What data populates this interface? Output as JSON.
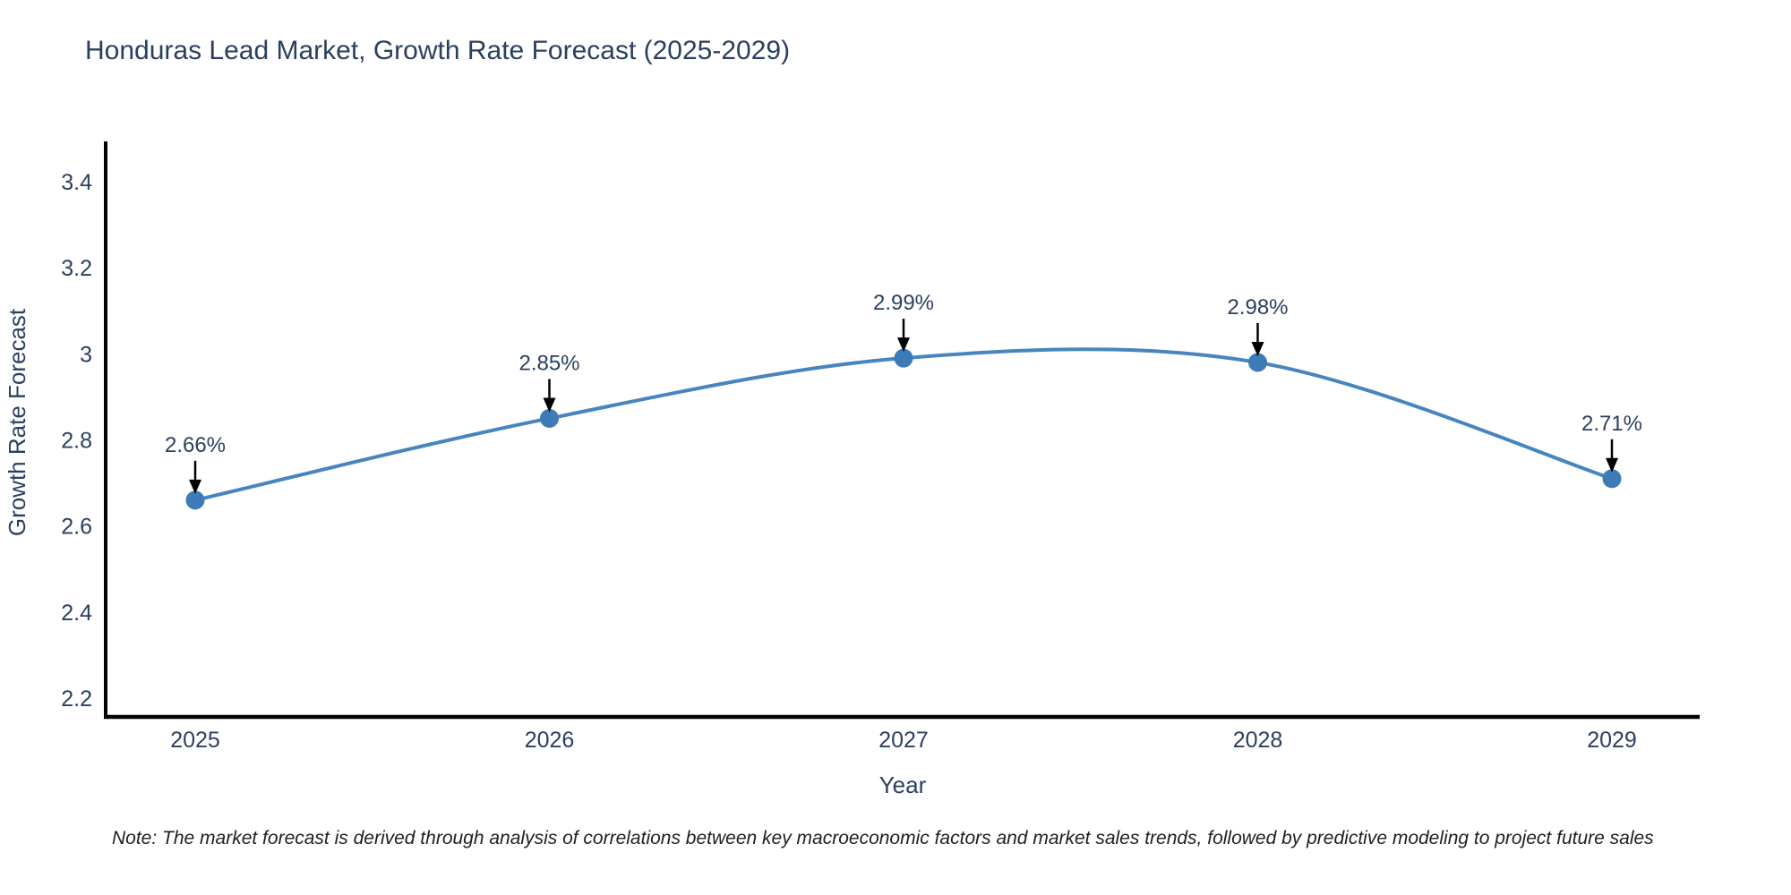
{
  "title": "Honduras Lead Market, Growth Rate Forecast (2025-2029)",
  "note": "Note: The market forecast is derived through analysis of correlations between key macroeconomic factors and market sales trends, followed by predictive modeling to project future sales",
  "chart_data": {
    "type": "line",
    "line_shape": "spline",
    "title": "Honduras Lead Market, Growth Rate Forecast (2025-2029)",
    "xlabel": "Year",
    "ylabel": "Growth Rate Forecast",
    "categories": [
      "2025",
      "2026",
      "2027",
      "2028",
      "2029"
    ],
    "values": [
      2.66,
      2.85,
      2.99,
      2.98,
      2.71
    ],
    "annotations": [
      "2.66%",
      "2.85%",
      "2.99%",
      "2.98%",
      "2.71%"
    ],
    "yticks": [
      {
        "value": 3.4,
        "label": "3.4"
      },
      {
        "value": 3.2,
        "label": "3.2"
      },
      {
        "value": 3.0,
        "label": "3"
      },
      {
        "value": 2.8,
        "label": "2.8"
      },
      {
        "value": 2.6,
        "label": "2.6"
      },
      {
        "value": 2.4,
        "label": "2.4"
      },
      {
        "value": 2.2,
        "label": "2.2"
      }
    ],
    "ylim": [
      2.15,
      3.5
    ],
    "grid": false,
    "legend": "none",
    "colors": {
      "line": "#4685bd",
      "marker": "#3c7bb6",
      "text": "#2a3f5f",
      "axis": "#000000",
      "arrow": "#000000",
      "note_text": "#1f1f1f"
    }
  }
}
